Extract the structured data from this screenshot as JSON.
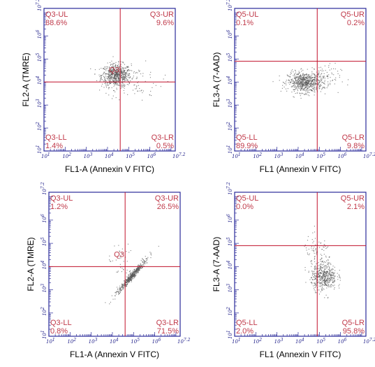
{
  "colors": {
    "frame": "#2a2a9a",
    "gate": "#c0102a",
    "label": "#c03a4a",
    "dots": "#555555"
  },
  "chart_data": [
    {
      "type": "scatter",
      "xlabel": "FL1-A (Annexin V FITC)",
      "ylabel": "FL2-A (TMRE)",
      "xlim": [
        1,
        7.2
      ],
      "ylim": [
        1,
        7.2
      ],
      "x_ticks": [
        "10^1",
        "10^2",
        "10^3",
        "10^4",
        "10^5",
        "10^6",
        "10^7.2"
      ],
      "y_ticks": [
        "10^1",
        "10^2",
        "10^3",
        "10^4",
        "10^5",
        "10^6",
        "10^7.2"
      ],
      "gate_x": 4.6,
      "gate_y": 4.0,
      "gate_name": "Q3",
      "quadrants": {
        "UL": {
          "label": "Q3-UL",
          "pct": "88.6%"
        },
        "UR": {
          "label": "Q3-UR",
          "pct": "9.6%"
        },
        "LL": {
          "label": "Q3-LL",
          "pct": "1.4%"
        },
        "LR": {
          "label": "Q3-LR",
          "pct": "0.5%"
        }
      },
      "clusters": [
        {
          "x": 4.4,
          "y": 4.3,
          "sx": 0.35,
          "sy": 0.25,
          "n": 700
        },
        {
          "x": 5.4,
          "y": 4.0,
          "sx": 0.6,
          "sy": 0.4,
          "n": 60
        }
      ]
    },
    {
      "type": "scatter",
      "xlabel": "FL1 (Annexin V FITC)",
      "ylabel": "FL3-A (7-AAD)",
      "xlim": [
        1,
        7.2
      ],
      "ylim": [
        1,
        7.2
      ],
      "x_ticks": [
        "10^1",
        "10^2",
        "10^3",
        "10^4",
        "10^5",
        "10^6",
        "10^7.2"
      ],
      "y_ticks": [
        "10^1",
        "10^2",
        "10^3",
        "10^4",
        "10^5",
        "10^6",
        "10^7.2"
      ],
      "gate_x": 4.9,
      "gate_y": 4.9,
      "gate_name": "",
      "quadrants": {
        "UL": {
          "label": "Q5-UL",
          "pct": "0.1%"
        },
        "UR": {
          "label": "Q5-UR",
          "pct": "0.2%"
        },
        "LL": {
          "label": "Q5-LL",
          "pct": "89.9%"
        },
        "LR": {
          "label": "Q5-LR",
          "pct": "9.8%"
        }
      },
      "clusters": [
        {
          "x": 4.3,
          "y": 4.0,
          "sx": 0.4,
          "sy": 0.22,
          "n": 700
        },
        {
          "x": 5.2,
          "y": 4.2,
          "sx": 0.4,
          "sy": 0.3,
          "n": 80
        }
      ]
    },
    {
      "type": "scatter",
      "xlabel": "FL1-A (Annexin V FITC)",
      "ylabel": "FL2-A (TMRE)",
      "xlim": [
        1,
        7.2
      ],
      "ylim": [
        1,
        7.2
      ],
      "x_ticks": [
        "10^1",
        "10^2",
        "10^3",
        "10^4",
        "10^5",
        "10^6",
        "10^7.2"
      ],
      "y_ticks": [
        "10^1",
        "10^2",
        "10^3",
        "10^4",
        "10^5",
        "10^6",
        "10^7.2"
      ],
      "gate_x": 4.6,
      "gate_y": 4.0,
      "gate_name": "Q3",
      "quadrants": {
        "UL": {
          "label": "Q3-UL",
          "pct": "1.2%"
        },
        "UR": {
          "label": "Q3-UR",
          "pct": "26.5%"
        },
        "LL": {
          "label": "Q3-LL",
          "pct": "0.8%"
        },
        "LR": {
          "label": "Q3-LR",
          "pct": "71.5%"
        }
      },
      "clusters": [
        {
          "x": 4.9,
          "y": 3.6,
          "sx": 0.35,
          "sy": 0.35,
          "n": 500,
          "diag": true
        },
        {
          "x": 4.4,
          "y": 4.2,
          "sx": 0.3,
          "sy": 0.4,
          "n": 40
        }
      ]
    },
    {
      "type": "scatter",
      "xlabel": "FL1 (Annexin V FITC)",
      "ylabel": "FL3-A (7-AAD)",
      "xlim": [
        1,
        7.2
      ],
      "ylim": [
        1,
        7.2
      ],
      "x_ticks": [
        "10^1",
        "10^2",
        "10^3",
        "10^4",
        "10^5",
        "10^6",
        "10^7.2"
      ],
      "y_ticks": [
        "10^1",
        "10^2",
        "10^3",
        "10^4",
        "10^5",
        "10^6",
        "10^7.2"
      ],
      "gate_x": 4.9,
      "gate_y": 4.9,
      "gate_name": "",
      "quadrants": {
        "UL": {
          "label": "Q5-UL",
          "pct": "0.0%"
        },
        "UR": {
          "label": "Q5-UR",
          "pct": "2.1%"
        },
        "LL": {
          "label": "Q5-LL",
          "pct": "2.0%"
        },
        "LR": {
          "label": "Q5-LR",
          "pct": "95.8%"
        }
      },
      "clusters": [
        {
          "x": 5.2,
          "y": 3.6,
          "sx": 0.3,
          "sy": 0.3,
          "n": 500
        },
        {
          "x": 4.9,
          "y": 4.6,
          "sx": 0.35,
          "sy": 0.35,
          "n": 80
        }
      ]
    }
  ]
}
